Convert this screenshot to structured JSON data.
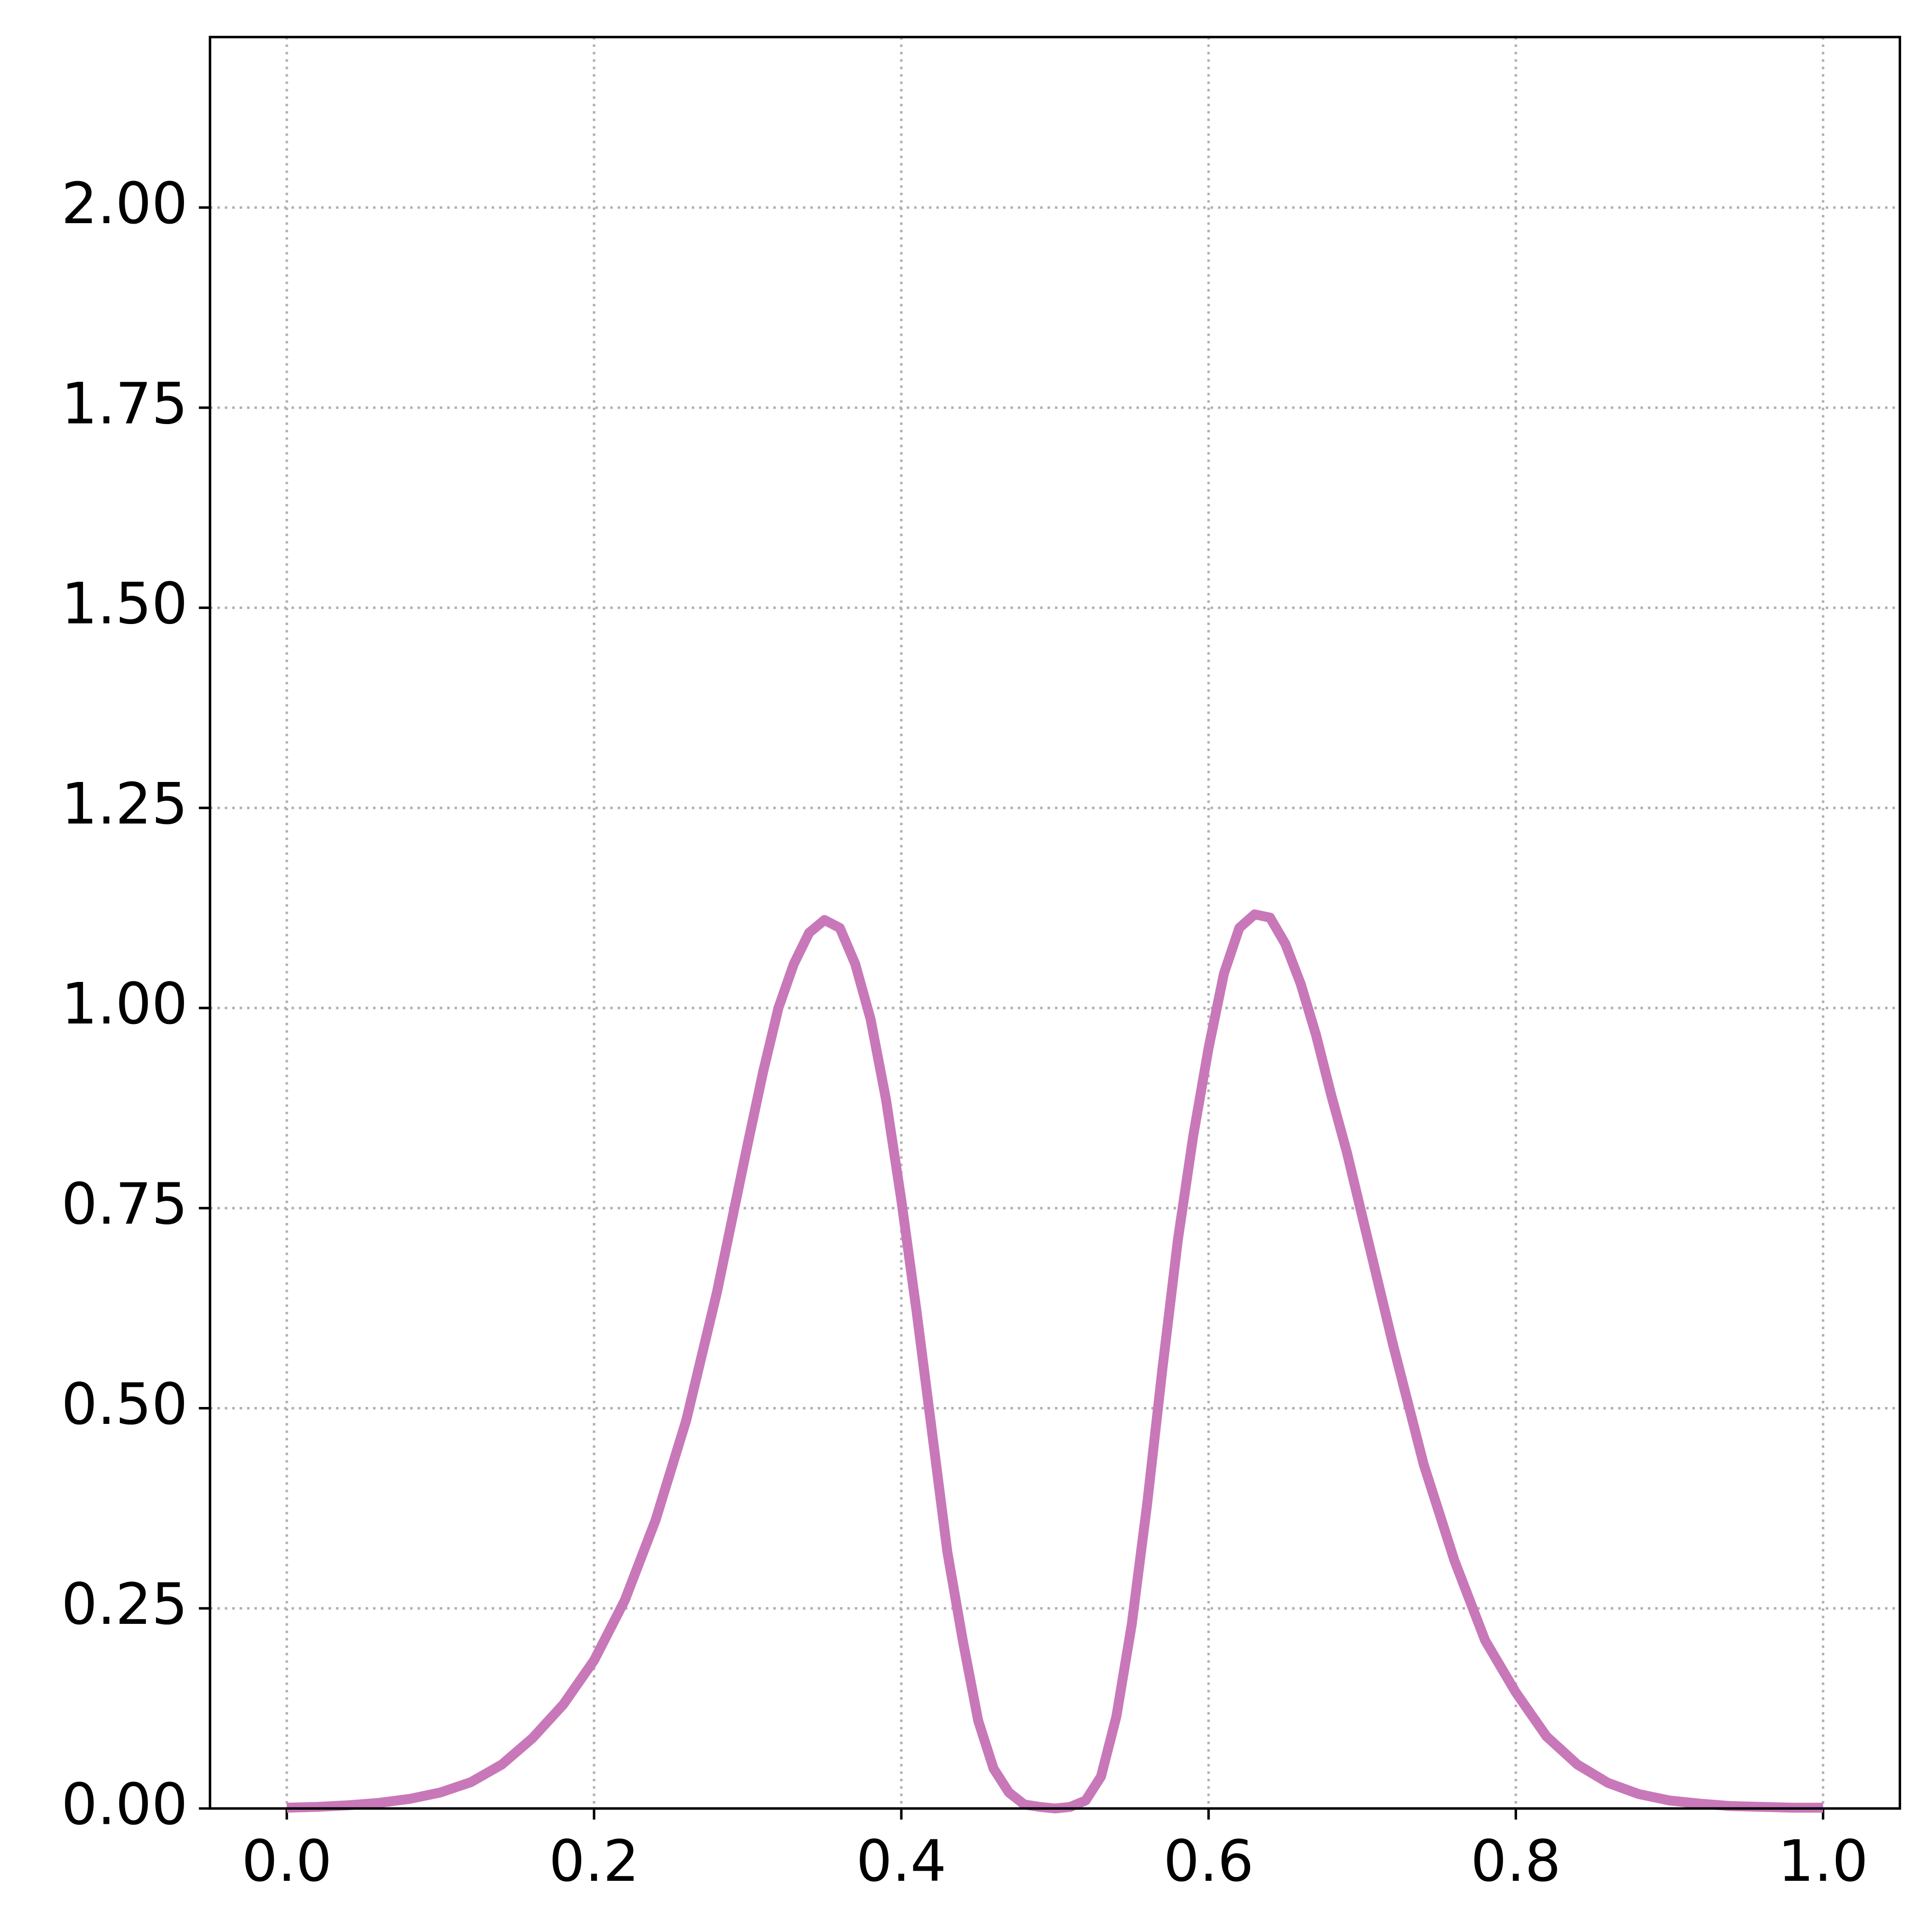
{
  "chart_data": {
    "type": "line",
    "x": [
      0,
      0.02,
      0.04,
      0.06,
      0.08,
      0.1,
      0.12,
      0.14,
      0.16,
      0.18,
      0.2,
      0.22,
      0.24,
      0.26,
      0.28,
      0.3,
      0.31,
      0.32,
      0.33,
      0.34,
      0.35,
      0.36,
      0.37,
      0.38,
      0.39,
      0.4,
      0.41,
      0.42,
      0.43,
      0.44,
      0.45,
      0.46,
      0.47,
      0.48,
      0.49,
      0.5,
      0.51,
      0.52,
      0.53,
      0.54,
      0.55,
      0.56,
      0.57,
      0.58,
      0.59,
      0.6,
      0.61,
      0.62,
      0.63,
      0.64,
      0.65,
      0.66,
      0.67,
      0.68,
      0.69,
      0.7,
      0.72,
      0.74,
      0.76,
      0.78,
      0.8,
      0.82,
      0.84,
      0.86,
      0.88,
      0.9,
      0.92,
      0.94,
      0.96,
      0.98,
      1.0
    ],
    "series": [
      {
        "color": "#c878b9",
        "values": [
          0.001,
          0.002,
          0.004,
          0.007,
          0.012,
          0.02,
          0.033,
          0.055,
          0.088,
          0.13,
          0.185,
          0.26,
          0.36,
          0.485,
          0.645,
          0.83,
          0.92,
          1.0,
          1.055,
          1.094,
          1.11,
          1.1,
          1.055,
          0.986,
          0.886,
          0.76,
          0.62,
          0.47,
          0.32,
          0.21,
          0.11,
          0.05,
          0.02,
          0.005,
          0.002,
          0,
          0.002,
          0.01,
          0.04,
          0.115,
          0.23,
          0.38,
          0.55,
          0.71,
          0.84,
          0.95,
          1.043,
          1.1,
          1.117,
          1.113,
          1.08,
          1.03,
          0.966,
          0.89,
          0.82,
          0.74,
          0.58,
          0.43,
          0.31,
          0.21,
          0.145,
          0.09,
          0.055,
          0.032,
          0.018,
          0.01,
          0.006,
          0.003,
          0.002,
          0.001,
          0.001
        ]
      }
    ],
    "xlim": [
      -0.05,
      1.05
    ],
    "ylim": [
      0,
      2.213
    ],
    "xticks": [
      {
        "value": 0,
        "label": "0.0"
      },
      0.2,
      0.4,
      0.6,
      0.8,
      {
        "value": 1,
        "label": "1.0"
      }
    ],
    "yticks": [
      {
        "value": 0,
        "label": "0.00"
      },
      0.25,
      {
        "value": 0.5,
        "label": "0.50"
      },
      0.75,
      {
        "value": 1,
        "label": "1.00"
      },
      1.25,
      {
        "value": 1.5,
        "label": "1.50"
      },
      1.75,
      {
        "value": 2,
        "label": "2.00"
      }
    ],
    "grid": true
  }
}
